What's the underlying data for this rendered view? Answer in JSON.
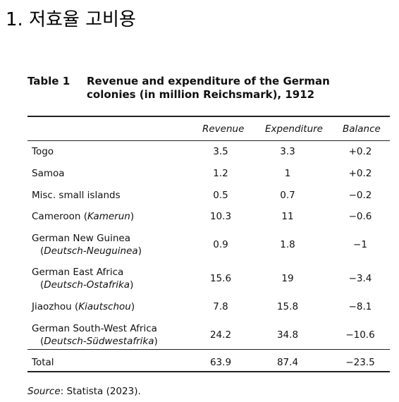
{
  "heading": "1. 저효율 고비용",
  "table": {
    "label": "Table 1",
    "title": "Revenue and expenditure of the German colonies (in million Reichsmark), 1912",
    "columns": [
      "Revenue",
      "Expenditure",
      "Balance"
    ],
    "rows": [
      {
        "name": "Togo",
        "revenue": "3.5",
        "expenditure": "3.3",
        "balance": "+0.2"
      },
      {
        "name": "Samoa",
        "revenue": "1.2",
        "expenditure": "1",
        "balance": "+0.2"
      },
      {
        "name": "Misc. small islands",
        "revenue": "0.5",
        "expenditure": "0.7",
        "balance": "−0.2"
      },
      {
        "name": "Cameroon (",
        "alt": "Kamerun",
        "close": ")",
        "revenue": "10.3",
        "expenditure": "11",
        "balance": "−0.6"
      },
      {
        "name": "German New Guinea",
        "alt": "Deutsch-Neuguinea",
        "revenue": "0.9",
        "expenditure": "1.8",
        "balance": "−1"
      },
      {
        "name": "German East Africa",
        "alt": "Deutsch-Ostafrika",
        "revenue": "15.6",
        "expenditure": "19",
        "balance": "−3.4"
      },
      {
        "name": "Jiaozhou (",
        "alt": "Kiautschou",
        "close": ")",
        "revenue": "7.8",
        "expenditure": "15.8",
        "balance": "−8.1"
      },
      {
        "name": "German South-West Africa",
        "alt": "Deutsch-Südwestafrika",
        "revenue": "24.2",
        "expenditure": "34.8",
        "balance": "−10.6"
      }
    ],
    "total": {
      "name": "Total",
      "revenue": "63.9",
      "expenditure": "87.4",
      "balance": "−23.5"
    }
  },
  "source": {
    "label": "Source",
    "text": ": Statista (2023)."
  }
}
